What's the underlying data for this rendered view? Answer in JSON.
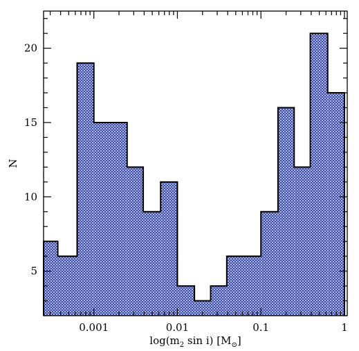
{
  "chart_data": {
    "type": "bar",
    "subtype": "histogram",
    "x_scale": "log",
    "xlim": [
      0.00025,
      1.08
    ],
    "ylim": [
      2,
      22.5
    ],
    "xlabel": "log(m",
    "xlabel_sub": "2",
    "xlabel_mid": " sin i) [M",
    "xlabel_sub2": "⊙",
    "xlabel_end": "]",
    "ylabel": "N",
    "x_ticks": [
      {
        "value": 0.001,
        "label": "0.001"
      },
      {
        "value": 0.01,
        "label": "0.01"
      },
      {
        "value": 0.1,
        "label": "0.1"
      },
      {
        "value": 1,
        "label": "1"
      }
    ],
    "y_ticks": [
      {
        "value": 5,
        "label": "5"
      },
      {
        "value": 10,
        "label": "10"
      },
      {
        "value": 15,
        "label": "15"
      },
      {
        "value": 20,
        "label": "20"
      }
    ],
    "bins": [
      {
        "left": 0.00025,
        "right": 0.00037,
        "count": 7
      },
      {
        "left": 0.00037,
        "right": 0.00063,
        "count": 6
      },
      {
        "left": 0.00063,
        "right": 0.001,
        "count": 19
      },
      {
        "left": 0.001,
        "right": 0.0025,
        "count": 15
      },
      {
        "left": 0.0025,
        "right": 0.0039,
        "count": 12
      },
      {
        "left": 0.0039,
        "right": 0.0063,
        "count": 9
      },
      {
        "left": 0.0063,
        "right": 0.01,
        "count": 11
      },
      {
        "left": 0.01,
        "right": 0.016,
        "count": 4
      },
      {
        "left": 0.016,
        "right": 0.025,
        "count": 3
      },
      {
        "left": 0.025,
        "right": 0.039,
        "count": 4
      },
      {
        "left": 0.039,
        "right": 0.1,
        "count": 6
      },
      {
        "left": 0.1,
        "right": 0.16,
        "count": 9
      },
      {
        "left": 0.16,
        "right": 0.25,
        "count": 16
      },
      {
        "left": 0.25,
        "right": 0.39,
        "count": 12
      },
      {
        "left": 0.39,
        "right": 0.63,
        "count": 21
      },
      {
        "left": 0.63,
        "right": 1.0,
        "count": 17
      }
    ],
    "grid": false,
    "fill_color": "#3a4aa8",
    "pattern_bg": "#d8dcf0",
    "edge_color": "#000000"
  }
}
